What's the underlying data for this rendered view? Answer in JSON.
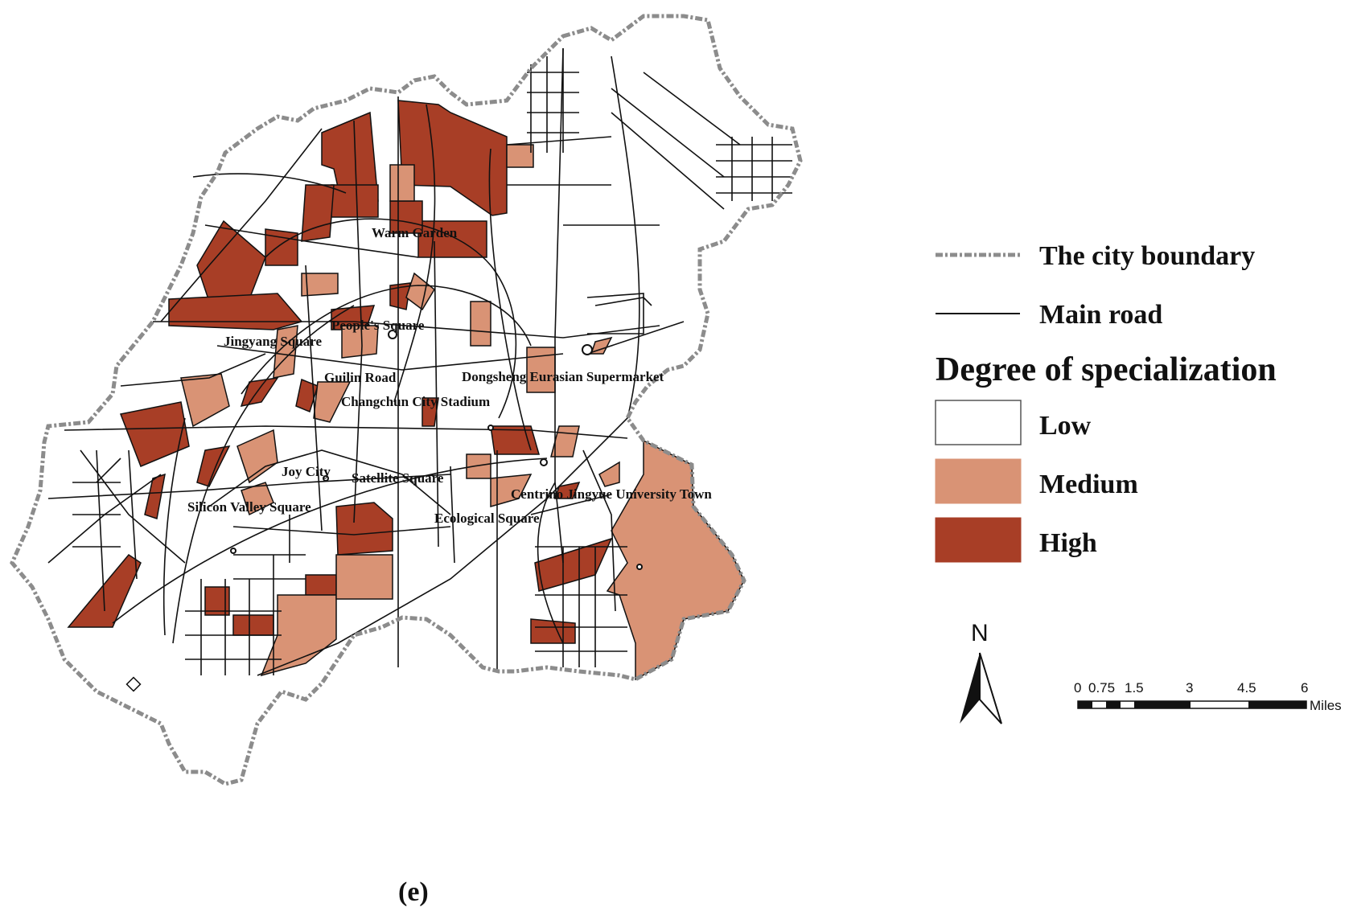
{
  "map": {
    "caption": "(e)",
    "place_labels": [
      "Warm Garden",
      "People's Square",
      "Jingyang Square",
      "Guilin Road",
      "Dongsheng Eurasian Supermarket",
      "Changchun City Stadium",
      "Joy City",
      "Satellite Square",
      "Silicon Valley Square",
      "Centrino Jingyue University Town",
      "Ecological Square"
    ]
  },
  "legend": {
    "boundary_label": "The city boundary",
    "road_label": "Main road",
    "title": "Degree of specialization",
    "classes": [
      {
        "label": "Low",
        "color": "#ffffff"
      },
      {
        "label": "Medium",
        "color": "#d99375"
      },
      {
        "label": "High",
        "color": "#a83e26"
      }
    ],
    "boundary_color": "#8c8c8c",
    "road_color": "#111111"
  },
  "north_arrow": {
    "label": "N"
  },
  "scale_bar": {
    "ticks": [
      "0",
      "0.75",
      "1.5",
      "3",
      "4.5",
      "6"
    ],
    "unit": "Miles"
  }
}
